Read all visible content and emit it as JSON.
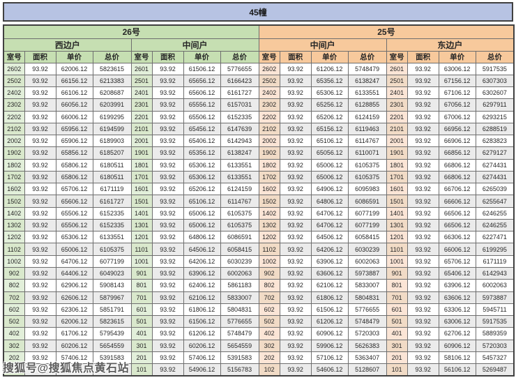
{
  "title": "45幢",
  "buildings": [
    {
      "label": "26号",
      "units": [
        "西边户",
        "中间户"
      ]
    },
    {
      "label": "25号",
      "units": [
        "中间户",
        "东边户"
      ]
    }
  ],
  "columns": [
    "室号",
    "面积",
    "单价",
    "总价"
  ],
  "watermark": "搜狐号@搜狐焦点黄石站",
  "colors": {
    "title_bg": "#b7c3e3",
    "green_header": "#c6dfb2",
    "green_cell": "#e2efda",
    "green_cell_alt": "#d9e8cc",
    "orange_header": "#f7c99c",
    "orange_cell": "#fbe5d6",
    "orange_cell_alt": "#f1dbc6",
    "row_alt": "#ebebeb"
  },
  "rows": [
    [
      "2602",
      "93.92",
      "62006.12",
      "5823615",
      "2601",
      "93.92",
      "61506.12",
      "5776655",
      "2602",
      "93.92",
      "61206.12",
      "5748479",
      "2601",
      "93.92",
      "63006.12",
      "5917535"
    ],
    [
      "2502",
      "93.92",
      "66156.12",
      "6213383",
      "2501",
      "93.92",
      "65656.12",
      "6166423",
      "2502",
      "93.92",
      "65356.12",
      "6138247",
      "2501",
      "93.92",
      "67156.12",
      "6307303"
    ],
    [
      "2402",
      "93.92",
      "66106.12",
      "6208687",
      "2401",
      "93.92",
      "65606.12",
      "6161727",
      "2402",
      "93.92",
      "65306.12",
      "6133551",
      "2401",
      "93.92",
      "67106.12",
      "6302607"
    ],
    [
      "2302",
      "93.92",
      "66056.12",
      "6203991",
      "2301",
      "93.92",
      "65556.12",
      "6157031",
      "2302",
      "93.92",
      "65256.12",
      "6128855",
      "2301",
      "93.92",
      "67056.12",
      "6297911"
    ],
    [
      "2202",
      "93.92",
      "66006.12",
      "6199295",
      "2201",
      "93.92",
      "65506.12",
      "6152335",
      "2202",
      "93.92",
      "65206.12",
      "6124159",
      "2201",
      "93.92",
      "67006.12",
      "6293215"
    ],
    [
      "2102",
      "93.92",
      "65956.12",
      "6194599",
      "2101",
      "93.92",
      "65456.12",
      "6147639",
      "2102",
      "93.92",
      "65156.12",
      "6119463",
      "2101",
      "93.92",
      "66956.12",
      "6288519"
    ],
    [
      "2002",
      "93.92",
      "65906.12",
      "6189903",
      "2001",
      "93.92",
      "65406.12",
      "6142943",
      "2002",
      "93.92",
      "65106.12",
      "6114767",
      "2001",
      "93.92",
      "66906.12",
      "6283823"
    ],
    [
      "1902",
      "93.92",
      "65856.12",
      "6185207",
      "1901",
      "93.92",
      "65356.12",
      "6138247",
      "1902",
      "93.92",
      "65056.12",
      "6110071",
      "1901",
      "93.92",
      "66856.12",
      "6279127"
    ],
    [
      "1802",
      "93.92",
      "65806.12",
      "6180511",
      "1801",
      "93.92",
      "65306.12",
      "6133551",
      "1802",
      "93.92",
      "65006.12",
      "6105375",
      "1801",
      "93.92",
      "66806.12",
      "6274431"
    ],
    [
      "1702",
      "93.92",
      "65806.12",
      "6180511",
      "1701",
      "93.92",
      "65306.12",
      "6133551",
      "1702",
      "93.92",
      "65006.12",
      "6105375",
      "1701",
      "93.92",
      "66806.12",
      "6274431"
    ],
    [
      "1602",
      "93.92",
      "65706.12",
      "6171119",
      "1601",
      "93.92",
      "65206.12",
      "6124159",
      "1602",
      "93.92",
      "64906.12",
      "6095983",
      "1601",
      "93.92",
      "66706.12",
      "6265039"
    ],
    [
      "1502",
      "93.92",
      "65606.12",
      "6161727",
      "1501",
      "93.92",
      "65106.12",
      "6114767",
      "1502",
      "93.92",
      "64806.12",
      "6086591",
      "1501",
      "93.92",
      "66606.12",
      "6255647"
    ],
    [
      "1402",
      "93.92",
      "65506.12",
      "6152335",
      "1401",
      "93.92",
      "65006.12",
      "6105375",
      "1402",
      "93.92",
      "64706.12",
      "6077199",
      "1401",
      "93.92",
      "66506.12",
      "6246255"
    ],
    [
      "1302",
      "93.92",
      "65506.12",
      "6152335",
      "1301",
      "93.92",
      "65006.12",
      "6105375",
      "1302",
      "93.92",
      "64706.12",
      "6077199",
      "1301",
      "93.92",
      "66506.12",
      "6246255"
    ],
    [
      "1202",
      "93.92",
      "65306.12",
      "6133551",
      "1201",
      "93.92",
      "64806.12",
      "6086591",
      "1202",
      "93.92",
      "64506.12",
      "6058415",
      "1201",
      "93.92",
      "66306.12",
      "6227471"
    ],
    [
      "1102",
      "93.92",
      "65006.12",
      "6105375",
      "1101",
      "93.92",
      "64506.12",
      "6058415",
      "1102",
      "93.92",
      "64206.12",
      "6030239",
      "1101",
      "93.92",
      "66006.12",
      "6199295"
    ],
    [
      "1002",
      "93.92",
      "64706.12",
      "6077199",
      "1001",
      "93.92",
      "64206.12",
      "6030239",
      "1002",
      "93.92",
      "63906.12",
      "6002063",
      "1001",
      "93.92",
      "65706.12",
      "6171119"
    ],
    [
      "902",
      "93.92",
      "64406.12",
      "6049023",
      "901",
      "93.92",
      "63906.12",
      "6002063",
      "902",
      "93.92",
      "63606.12",
      "5973887",
      "901",
      "93.92",
      "65406.12",
      "6142943"
    ],
    [
      "802",
      "93.92",
      "62906.12",
      "5908143",
      "801",
      "93.92",
      "62406.12",
      "5861183",
      "802",
      "93.92",
      "62106.12",
      "5833007",
      "801",
      "93.92",
      "63906.12",
      "6002063"
    ],
    [
      "702",
      "93.92",
      "62606.12",
      "5879967",
      "701",
      "93.92",
      "62106.12",
      "5833007",
      "702",
      "93.92",
      "61806.12",
      "5804831",
      "701",
      "93.92",
      "63606.12",
      "5973887"
    ],
    [
      "602",
      "93.92",
      "62306.12",
      "5851791",
      "601",
      "93.92",
      "61806.12",
      "5804831",
      "602",
      "93.92",
      "61506.12",
      "5776655",
      "601",
      "93.92",
      "63306.12",
      "5945711"
    ],
    [
      "502",
      "93.92",
      "62006.12",
      "5823615",
      "501",
      "93.92",
      "61506.12",
      "5776655",
      "502",
      "93.92",
      "61206.12",
      "5748479",
      "501",
      "93.92",
      "63006.12",
      "5917535"
    ],
    [
      "402",
      "93.92",
      "61706.12",
      "5795439",
      "401",
      "93.92",
      "61206.12",
      "5748479",
      "402",
      "93.92",
      "60906.12",
      "5720303",
      "401",
      "93.92",
      "62706.12",
      "5889359"
    ],
    [
      "302",
      "93.92",
      "60206.12",
      "5654559",
      "301",
      "93.92",
      "60206.12",
      "5654559",
      "302",
      "93.92",
      "59906.12",
      "5626383",
      "301",
      "93.92",
      "60906.12",
      "5720303"
    ],
    [
      "202",
      "93.92",
      "57406.12",
      "5391583",
      "201",
      "93.92",
      "57406.12",
      "5391583",
      "202",
      "93.92",
      "57106.12",
      "5363407",
      "201",
      "93.92",
      "58106.12",
      "5457327"
    ],
    [
      "",
      "",
      "",
      "743",
      "101",
      "93.92",
      "54906.12",
      "5156783",
      "102",
      "93.92",
      "54606.12",
      "5128607",
      "101",
      "93.92",
      "56106.12",
      "5269487"
    ]
  ]
}
